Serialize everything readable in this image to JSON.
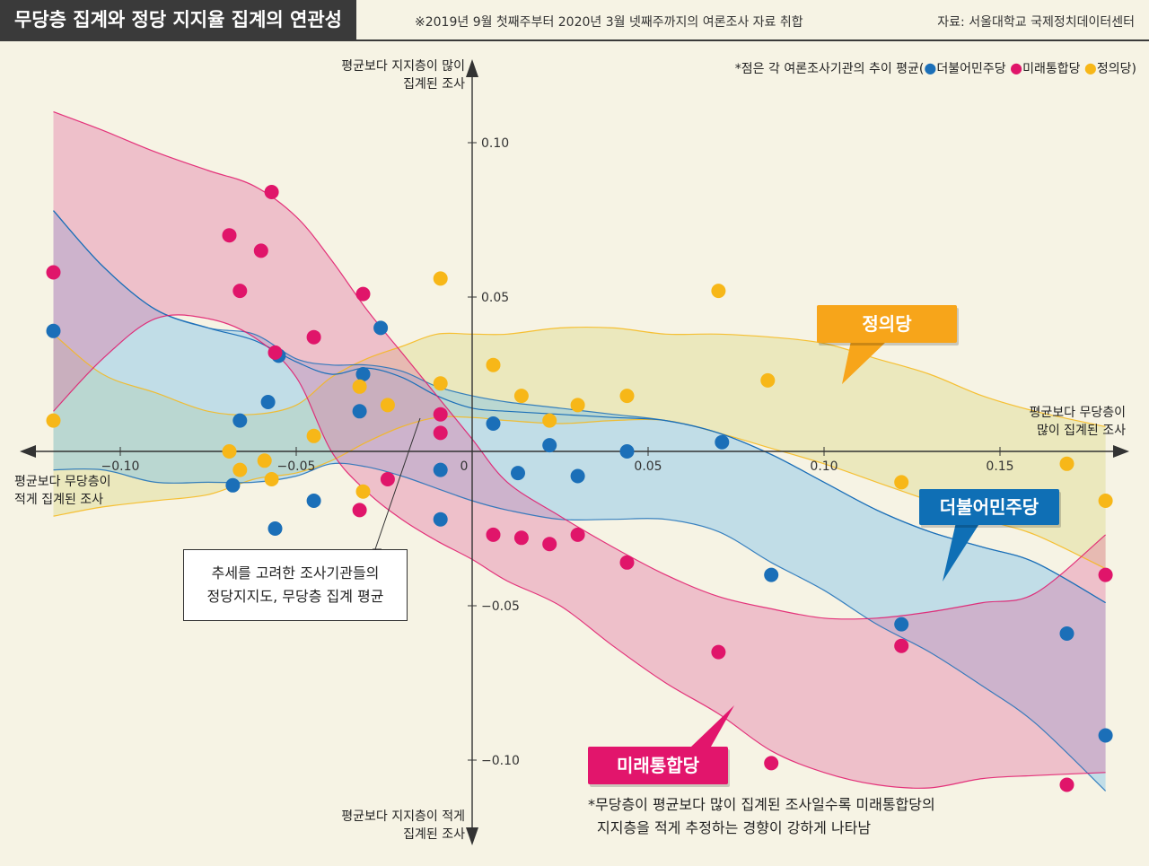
{
  "header": {
    "title": "무당층 집계와 정당 지지율 집계의 연관성",
    "note": "※2019년 9월 첫째주부터 2020년 3월 넷째주까지의 여론조사 자료 취합",
    "source": "자료: 서울대학교 국제정치데이터센터"
  },
  "legend": {
    "prefix": "*점은 각 여론조사기관의 추이 평균(",
    "suffix": ")",
    "entries": [
      {
        "name": "더불어민주당",
        "color": "#1b6fb8"
      },
      {
        "name": "미래통합당",
        "color": "#e0156a"
      },
      {
        "name": "정의당",
        "color": "#f7b718"
      }
    ]
  },
  "axis_notes": {
    "y_top": [
      "평균보다 지지층이 많이",
      "집계된 조사"
    ],
    "y_bottom": [
      "평균보다 지지층이 적게",
      "집계된 조사"
    ],
    "x_right": [
      "평균보다 무당층이",
      "많이 집계된 조사"
    ],
    "x_left": [
      "평균보다 무당층이",
      "적게 집계된 조사"
    ]
  },
  "callout": {
    "lines": [
      "추세를 고려한 조사기관들의",
      "정당지지도, 무당층 집계 평균"
    ]
  },
  "party_labels": {
    "justice": "정의당",
    "democratic": "더불어민주당",
    "united": "미래통합당"
  },
  "footnote": [
    "*무당층이 평균보다 많이 집계된 조사일수록 미래통합당의",
    "지지층을 적게 추정하는 경향이 강하게 나타남"
  ],
  "chart_data": {
    "type": "scatter",
    "xlim": [
      -0.12,
      0.18
    ],
    "ylim": [
      -0.11,
      0.11
    ],
    "x_ticks": [
      -0.1,
      -0.05,
      0,
      0.05,
      0.1,
      0.15
    ],
    "x_tick_labels": [
      "−0.10",
      "−0.05",
      "0",
      "0.05",
      "0.10",
      "0.15"
    ],
    "y_ticks": [
      0.1,
      0.05,
      -0.05,
      -0.1
    ],
    "y_tick_labels": [
      "0.10",
      "0.05",
      "−0.05",
      "−0.10"
    ],
    "series": [
      {
        "name": "더불어민주당",
        "color": "#1b6fb8",
        "points": [
          [
            -0.119,
            0.039
          ],
          [
            -0.068,
            -0.011
          ],
          [
            -0.066,
            0.01
          ],
          [
            -0.058,
            0.016
          ],
          [
            -0.056,
            -0.025
          ],
          [
            -0.055,
            0.031
          ],
          [
            -0.045,
            -0.016
          ],
          [
            -0.032,
            0.013
          ],
          [
            -0.031,
            0.025
          ],
          [
            -0.026,
            0.04
          ],
          [
            -0.009,
            -0.006
          ],
          [
            -0.009,
            -0.022
          ],
          [
            0.006,
            0.009
          ],
          [
            0.013,
            -0.007
          ],
          [
            0.022,
            0.002
          ],
          [
            0.03,
            -0.008
          ],
          [
            0.044,
            0.0
          ],
          [
            0.071,
            0.003
          ],
          [
            0.085,
            -0.04
          ],
          [
            0.122,
            -0.056
          ],
          [
            0.169,
            -0.059
          ],
          [
            0.18,
            -0.092
          ]
        ],
        "trend": [
          [
            -0.119,
            0.078
          ],
          [
            -0.105,
            0.06
          ],
          [
            -0.09,
            0.046
          ],
          [
            -0.075,
            0.04
          ],
          [
            -0.062,
            0.036
          ],
          [
            -0.05,
            0.029
          ],
          [
            -0.04,
            0.025
          ],
          [
            -0.03,
            0.027
          ],
          [
            -0.02,
            0.024
          ],
          [
            -0.01,
            0.018
          ],
          [
            0.0,
            0.014
          ],
          [
            0.01,
            0.013
          ],
          [
            0.025,
            0.012
          ],
          [
            0.04,
            0.011
          ],
          [
            0.055,
            0.01
          ],
          [
            0.07,
            0.006
          ],
          [
            0.085,
            -0.001
          ],
          [
            0.1,
            -0.01
          ],
          [
            0.115,
            -0.019
          ],
          [
            0.13,
            -0.026
          ],
          [
            0.145,
            -0.031
          ],
          [
            0.16,
            -0.036
          ],
          [
            0.18,
            -0.049
          ]
        ],
        "band_upper": [
          [
            -0.119,
            0.078
          ],
          [
            -0.105,
            0.06
          ],
          [
            -0.09,
            0.046
          ],
          [
            -0.075,
            0.04
          ],
          [
            -0.062,
            0.038
          ],
          [
            -0.05,
            0.03
          ],
          [
            -0.04,
            0.028
          ],
          [
            -0.03,
            0.028
          ],
          [
            -0.02,
            0.026
          ],
          [
            -0.01,
            0.021
          ],
          [
            0.0,
            0.018
          ],
          [
            0.01,
            0.016
          ],
          [
            0.025,
            0.014
          ],
          [
            0.04,
            0.012
          ],
          [
            0.055,
            0.01
          ],
          [
            0.07,
            0.006
          ],
          [
            0.085,
            -0.001
          ],
          [
            0.1,
            -0.01
          ],
          [
            0.115,
            -0.019
          ],
          [
            0.13,
            -0.026
          ],
          [
            0.145,
            -0.031
          ],
          [
            0.16,
            -0.036
          ],
          [
            0.18,
            -0.049
          ]
        ],
        "band_lower": [
          [
            -0.119,
            -0.006
          ],
          [
            -0.105,
            -0.006
          ],
          [
            -0.09,
            -0.01
          ],
          [
            -0.075,
            -0.01
          ],
          [
            -0.062,
            -0.01
          ],
          [
            -0.05,
            -0.008
          ],
          [
            -0.04,
            -0.004
          ],
          [
            -0.03,
            -0.005
          ],
          [
            -0.02,
            -0.008
          ],
          [
            -0.01,
            -0.012
          ],
          [
            0.0,
            -0.016
          ],
          [
            0.01,
            -0.019
          ],
          [
            0.025,
            -0.022
          ],
          [
            0.04,
            -0.022
          ],
          [
            0.055,
            -0.022
          ],
          [
            0.07,
            -0.026
          ],
          [
            0.085,
            -0.036
          ],
          [
            0.1,
            -0.045
          ],
          [
            0.115,
            -0.056
          ],
          [
            0.13,
            -0.065
          ],
          [
            0.145,
            -0.076
          ],
          [
            0.16,
            -0.088
          ],
          [
            0.18,
            -0.11
          ]
        ]
      },
      {
        "name": "미래통합당",
        "color": "#e0156a",
        "points": [
          [
            -0.119,
            0.058
          ],
          [
            -0.069,
            0.07
          ],
          [
            -0.066,
            0.052
          ],
          [
            -0.06,
            0.065
          ],
          [
            -0.057,
            0.084
          ],
          [
            -0.056,
            0.032
          ],
          [
            -0.045,
            0.037
          ],
          [
            -0.032,
            -0.019
          ],
          [
            -0.031,
            0.051
          ],
          [
            -0.024,
            -0.009
          ],
          [
            -0.009,
            0.012
          ],
          [
            -0.009,
            0.006
          ],
          [
            0.006,
            -0.027
          ],
          [
            0.014,
            -0.028
          ],
          [
            0.022,
            -0.03
          ],
          [
            0.03,
            -0.027
          ],
          [
            0.044,
            -0.036
          ],
          [
            0.07,
            -0.065
          ],
          [
            0.085,
            -0.101
          ],
          [
            0.122,
            -0.063
          ],
          [
            0.169,
            -0.108
          ],
          [
            0.18,
            -0.04
          ]
        ],
        "band_upper": [
          [
            -0.119,
            0.11
          ],
          [
            -0.105,
            0.104
          ],
          [
            -0.09,
            0.097
          ],
          [
            -0.075,
            0.091
          ],
          [
            -0.062,
            0.086
          ],
          [
            -0.05,
            0.076
          ],
          [
            -0.04,
            0.062
          ],
          [
            -0.03,
            0.046
          ],
          [
            -0.02,
            0.032
          ],
          [
            -0.01,
            0.018
          ],
          [
            0.0,
            0.004
          ],
          [
            0.01,
            -0.01
          ],
          [
            0.025,
            -0.021
          ],
          [
            0.04,
            -0.031
          ],
          [
            0.055,
            -0.04
          ],
          [
            0.07,
            -0.047
          ],
          [
            0.085,
            -0.051
          ],
          [
            0.1,
            -0.054
          ],
          [
            0.115,
            -0.054
          ],
          [
            0.13,
            -0.052
          ],
          [
            0.145,
            -0.049
          ],
          [
            0.16,
            -0.046
          ],
          [
            0.18,
            -0.027
          ]
        ],
        "band_lower": [
          [
            -0.119,
            0.013
          ],
          [
            -0.105,
            0.03
          ],
          [
            -0.09,
            0.043
          ],
          [
            -0.075,
            0.043
          ],
          [
            -0.062,
            0.037
          ],
          [
            -0.05,
            0.024
          ],
          [
            -0.04,
            0.0
          ],
          [
            -0.03,
            -0.013
          ],
          [
            -0.02,
            -0.022
          ],
          [
            -0.01,
            -0.029
          ],
          [
            0.0,
            -0.035
          ],
          [
            0.01,
            -0.042
          ],
          [
            0.025,
            -0.05
          ],
          [
            0.04,
            -0.063
          ],
          [
            0.055,
            -0.075
          ],
          [
            0.07,
            -0.085
          ],
          [
            0.085,
            -0.097
          ],
          [
            0.1,
            -0.104
          ],
          [
            0.115,
            -0.108
          ],
          [
            0.13,
            -0.109
          ],
          [
            0.145,
            -0.106
          ],
          [
            0.16,
            -0.105
          ],
          [
            0.18,
            -0.104
          ]
        ]
      },
      {
        "name": "정의당",
        "color": "#f7b718",
        "points": [
          [
            -0.119,
            0.01
          ],
          [
            -0.069,
            0.0
          ],
          [
            -0.066,
            -0.006
          ],
          [
            -0.059,
            -0.003
          ],
          [
            -0.057,
            -0.009
          ],
          [
            -0.045,
            0.005
          ],
          [
            -0.032,
            0.021
          ],
          [
            -0.031,
            -0.013
          ],
          [
            -0.024,
            0.015
          ],
          [
            -0.009,
            0.056
          ],
          [
            -0.009,
            0.022
          ],
          [
            0.006,
            0.028
          ],
          [
            0.014,
            0.018
          ],
          [
            0.022,
            0.01
          ],
          [
            0.03,
            0.015
          ],
          [
            0.044,
            0.018
          ],
          [
            0.07,
            0.052
          ],
          [
            0.084,
            0.023
          ],
          [
            0.122,
            -0.01
          ],
          [
            0.169,
            -0.004
          ],
          [
            0.18,
            -0.016
          ]
        ],
        "band_upper": [
          [
            -0.119,
            0.038
          ],
          [
            -0.105,
            0.025
          ],
          [
            -0.09,
            0.019
          ],
          [
            -0.075,
            0.013
          ],
          [
            -0.062,
            0.012
          ],
          [
            -0.05,
            0.015
          ],
          [
            -0.04,
            0.024
          ],
          [
            -0.03,
            0.03
          ],
          [
            -0.02,
            0.034
          ],
          [
            -0.01,
            0.038
          ],
          [
            0.0,
            0.038
          ],
          [
            0.01,
            0.038
          ],
          [
            0.025,
            0.04
          ],
          [
            0.04,
            0.04
          ],
          [
            0.055,
            0.038
          ],
          [
            0.07,
            0.038
          ],
          [
            0.085,
            0.037
          ],
          [
            0.1,
            0.035
          ],
          [
            0.115,
            0.03
          ],
          [
            0.13,
            0.025
          ],
          [
            0.145,
            0.018
          ],
          [
            0.16,
            0.013
          ],
          [
            0.18,
            0.008
          ]
        ],
        "band_lower": [
          [
            -0.119,
            -0.021
          ],
          [
            -0.105,
            -0.018
          ],
          [
            -0.09,
            -0.016
          ],
          [
            -0.075,
            -0.014
          ],
          [
            -0.062,
            -0.009
          ],
          [
            -0.05,
            -0.007
          ],
          [
            -0.04,
            -0.003
          ],
          [
            -0.03,
            0.003
          ],
          [
            -0.02,
            0.008
          ],
          [
            -0.01,
            0.011
          ],
          [
            0.0,
            0.011
          ],
          [
            0.01,
            0.01
          ],
          [
            0.025,
            0.009
          ],
          [
            0.04,
            0.01
          ],
          [
            0.055,
            0.01
          ],
          [
            0.07,
            0.006
          ],
          [
            0.085,
            0.001
          ],
          [
            0.1,
            -0.004
          ],
          [
            0.115,
            -0.01
          ],
          [
            0.13,
            -0.016
          ],
          [
            0.145,
            -0.022
          ],
          [
            0.16,
            -0.027
          ],
          [
            0.18,
            -0.038
          ]
        ]
      }
    ]
  }
}
